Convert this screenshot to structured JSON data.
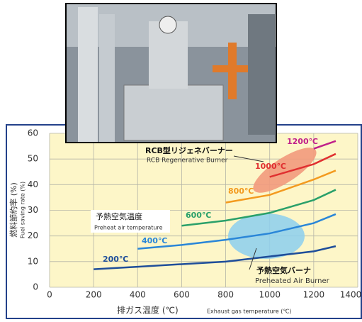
{
  "chart_data": {
    "type": "line",
    "y_axis_title": "燃料節約率 (%)",
    "y_axis_title_en": "Fuel saving rate (%)",
    "x_axis_title": "排ガス温度 (℃)",
    "x_axis_title_en": "Exhaust gas temperature (℃)",
    "xlim": [
      0,
      1400
    ],
    "xticks": [
      0,
      200,
      400,
      600,
      800,
      1000,
      1200,
      1400
    ],
    "ylim": [
      0,
      60
    ],
    "yticks": [
      0,
      10,
      20,
      30,
      40,
      50,
      60
    ],
    "grid": true,
    "series": [
      {
        "name": "200℃",
        "color": "#1f4e9a",
        "x": [
          200,
          400,
          600,
          800,
          1000,
          1200,
          1300
        ],
        "values": [
          7,
          8,
          9,
          10,
          12,
          14,
          16
        ]
      },
      {
        "name": "400℃",
        "color": "#2a86d8",
        "x": [
          400,
          600,
          800,
          1000,
          1200,
          1300
        ],
        "values": [
          15,
          16.5,
          18.5,
          21,
          25,
          28.5
        ]
      },
      {
        "name": "600℃",
        "color": "#2aa06a",
        "x": [
          600,
          800,
          1000,
          1200,
          1300
        ],
        "values": [
          24,
          26,
          29,
          34,
          38
        ]
      },
      {
        "name": "800℃",
        "color": "#f39a1e",
        "x": [
          800,
          1000,
          1200,
          1300
        ],
        "values": [
          33,
          36,
          42,
          45.5
        ]
      },
      {
        "name": "1000℃",
        "color": "#e03030",
        "x": [
          1000,
          1200,
          1300
        ],
        "values": [
          43,
          48,
          52
        ]
      },
      {
        "name": "1200℃",
        "color": "#c0208a",
        "x": [
          1200,
          1300
        ],
        "values": [
          54,
          57
        ]
      }
    ],
    "annotations": {
      "rcb": "RCB型リジェネバーナー",
      "rcb_en": "RCB Regenerative Burner",
      "preheat_temp": "予熱空気温度",
      "preheat_temp_en": "Preheat air temperature",
      "preheated_burner": "予熱空気バーナ",
      "preheated_burner_en": "Preheated Air Burner"
    }
  }
}
